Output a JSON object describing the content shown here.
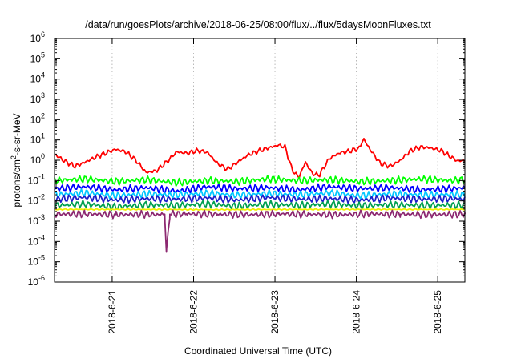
{
  "chart_data": {
    "type": "line",
    "title": "/data/run/goesPlots/archive/2018-06-25/08:00/flux/../flux/5daysMoonFluxes.txt",
    "xlabel": "Coordinated Universal Time (UTC)",
    "ylabel": {
      "before": "protons/cm",
      "sup": "2",
      "after": "-s-sr-MeV"
    },
    "yscale": "log",
    "ylim": [
      1e-06,
      1000000.0
    ],
    "y_ticks": [
      {
        "base": "10",
        "exp": "6"
      },
      {
        "base": "10",
        "exp": "5"
      },
      {
        "base": "10",
        "exp": "4"
      },
      {
        "base": "10",
        "exp": "3"
      },
      {
        "base": "10",
        "exp": "2"
      },
      {
        "base": "10",
        "exp": "1"
      },
      {
        "base": "10",
        "exp": "0"
      },
      {
        "base": "10",
        "exp": "-1"
      },
      {
        "base": "10",
        "exp": "-2"
      },
      {
        "base": "10",
        "exp": "-3"
      },
      {
        "base": "10",
        "exp": "-4"
      },
      {
        "base": "10",
        "exp": "-5"
      },
      {
        "base": "10",
        "exp": "-6"
      }
    ],
    "xlim": [
      "2018-06-20 07:00",
      "2018-06-25 08:00"
    ],
    "x_ticks": [
      "2018-6-21",
      "2018-6-22",
      "2018-6-23",
      "2018-6-24",
      "2018-6-25"
    ],
    "grid": true,
    "series": [
      {
        "color": "#ff0000",
        "x": [
          "2018-06-20 07:00",
          "2018-06-20 10:00",
          "2018-06-20 13:00",
          "2018-06-20 16:00",
          "2018-06-20 19:00",
          "2018-06-20 22:00",
          "2018-06-21 01:00",
          "2018-06-21 04:00",
          "2018-06-21 07:00",
          "2018-06-21 10:00",
          "2018-06-21 13:00",
          "2018-06-21 16:00",
          "2018-06-21 19:00",
          "2018-06-21 22:00",
          "2018-06-22 01:00",
          "2018-06-22 04:00",
          "2018-06-22 07:00",
          "2018-06-22 10:00",
          "2018-06-22 13:00",
          "2018-06-22 16:00",
          "2018-06-22 19:00",
          "2018-06-22 22:00",
          "2018-06-23 01:00",
          "2018-06-23 03:00",
          "2018-06-23 05:00",
          "2018-06-23 07:00",
          "2018-06-23 09:00",
          "2018-06-23 11:00",
          "2018-06-23 13:00",
          "2018-06-23 16:00",
          "2018-06-23 19:00",
          "2018-06-23 22:00",
          "2018-06-24 01:00",
          "2018-06-24 02:00",
          "2018-06-24 04:00",
          "2018-06-24 07:00",
          "2018-06-24 10:00",
          "2018-06-24 13:00",
          "2018-06-24 16:00",
          "2018-06-24 19:00",
          "2018-06-24 22:00",
          "2018-06-25 01:00",
          "2018-06-25 04:00",
          "2018-06-25 06:00",
          "2018-06-25 08:00"
        ],
        "values": [
          2.0,
          0.9,
          0.5,
          0.8,
          1.4,
          2.2,
          3.5,
          2.6,
          1.0,
          0.25,
          0.3,
          0.8,
          2.6,
          2.2,
          3.0,
          2.5,
          0.7,
          0.35,
          0.8,
          1.8,
          2.8,
          4.0,
          5.5,
          4.5,
          0.35,
          0.14,
          0.8,
          0.22,
          0.18,
          1.2,
          2.3,
          2.8,
          4.0,
          12.0,
          3.5,
          0.7,
          0.5,
          1.0,
          3.0,
          4.5,
          4.0,
          3.0,
          1.4,
          0.9,
          1.0
        ]
      },
      {
        "color": "#00ff00",
        "x": [
          "2018-06-20 07:00",
          "2018-06-20 16:00",
          "2018-06-21 01:00",
          "2018-06-21 10:00",
          "2018-06-21 19:00",
          "2018-06-22 04:00",
          "2018-06-22 13:00",
          "2018-06-22 22:00",
          "2018-06-23 07:00",
          "2018-06-23 16:00",
          "2018-06-24 01:00",
          "2018-06-24 10:00",
          "2018-06-24 19:00",
          "2018-06-25 04:00",
          "2018-06-25 08:00"
        ],
        "values": [
          0.1,
          0.12,
          0.09,
          0.11,
          0.08,
          0.1,
          0.09,
          0.12,
          0.1,
          0.11,
          0.09,
          0.1,
          0.12,
          0.1,
          0.11
        ]
      },
      {
        "color": "#0000ff",
        "x": [
          "2018-06-20 07:00",
          "2018-06-20 16:00",
          "2018-06-21 01:00",
          "2018-06-21 10:00",
          "2018-06-21 19:00",
          "2018-06-22 04:00",
          "2018-06-22 13:00",
          "2018-06-22 22:00",
          "2018-06-23 07:00",
          "2018-06-23 16:00",
          "2018-06-24 01:00",
          "2018-06-24 10:00",
          "2018-06-24 19:00",
          "2018-06-25 04:00",
          "2018-06-25 08:00"
        ],
        "values": [
          0.04,
          0.05,
          0.035,
          0.045,
          0.03,
          0.05,
          0.04,
          0.045,
          0.035,
          0.05,
          0.04,
          0.045,
          0.035,
          0.04,
          0.045
        ]
      },
      {
        "color": "#00c8ff",
        "x": [
          "2018-06-20 07:00",
          "2018-06-20 16:00",
          "2018-06-21 01:00",
          "2018-06-21 10:00",
          "2018-06-21 19:00",
          "2018-06-22 04:00",
          "2018-06-22 13:00",
          "2018-06-22 22:00",
          "2018-06-23 07:00",
          "2018-06-23 16:00",
          "2018-06-24 01:00",
          "2018-06-24 10:00",
          "2018-06-24 19:00",
          "2018-06-25 04:00",
          "2018-06-25 08:00"
        ],
        "values": [
          0.02,
          0.025,
          0.018,
          0.022,
          0.02,
          0.024,
          0.019,
          0.023,
          0.02,
          0.025,
          0.018,
          0.022,
          0.02,
          0.021,
          0.02
        ]
      },
      {
        "color": "#1e1ec8",
        "x": [
          "2018-06-20 07:00",
          "2018-06-20 16:00",
          "2018-06-21 01:00",
          "2018-06-21 10:00",
          "2018-06-21 19:00",
          "2018-06-22 04:00",
          "2018-06-22 13:00",
          "2018-06-22 22:00",
          "2018-06-23 07:00",
          "2018-06-23 16:00",
          "2018-06-24 01:00",
          "2018-06-24 10:00",
          "2018-06-24 19:00",
          "2018-06-25 04:00",
          "2018-06-25 08:00"
        ],
        "values": [
          0.012,
          0.015,
          0.011,
          0.013,
          0.012,
          0.014,
          0.011,
          0.015,
          0.012,
          0.013,
          0.011,
          0.014,
          0.012,
          0.013,
          0.012
        ]
      },
      {
        "color": "#00a050",
        "x": [
          "2018-06-20 07:00",
          "2018-06-20 16:00",
          "2018-06-21 01:00",
          "2018-06-21 10:00",
          "2018-06-21 19:00",
          "2018-06-22 04:00",
          "2018-06-22 13:00",
          "2018-06-22 22:00",
          "2018-06-23 07:00",
          "2018-06-23 16:00",
          "2018-06-24 01:00",
          "2018-06-24 10:00",
          "2018-06-24 19:00",
          "2018-06-25 04:00",
          "2018-06-25 08:00"
        ],
        "values": [
          0.006,
          0.007,
          0.005,
          0.0065,
          0.006,
          0.007,
          0.0055,
          0.0068,
          0.006,
          0.007,
          0.0058,
          0.0065,
          0.006,
          0.0062,
          0.006
        ]
      },
      {
        "color": "#f0f000",
        "x": [
          "2018-06-20 07:00",
          "2018-06-21 07:00",
          "2018-06-22 07:00",
          "2018-06-23 07:00",
          "2018-06-24 07:00",
          "2018-06-25 08:00"
        ],
        "values": [
          0.0038,
          0.0038,
          0.0037,
          0.0038,
          0.0038,
          0.0038
        ]
      },
      {
        "color": "#8c2870",
        "x": [
          "2018-06-20 07:00",
          "2018-06-20 16:00",
          "2018-06-21 01:00",
          "2018-06-21 10:00",
          "2018-06-21 14:00",
          "2018-06-21 15:30",
          "2018-06-21 16:00",
          "2018-06-21 17:00",
          "2018-06-21 22:00",
          "2018-06-22 07:00",
          "2018-06-22 16:00",
          "2018-06-23 01:00",
          "2018-06-23 10:00",
          "2018-06-23 19:00",
          "2018-06-24 04:00",
          "2018-06-24 13:00",
          "2018-06-24 22:00",
          "2018-06-25 08:00"
        ],
        "values": [
          0.0022,
          0.0023,
          0.0021,
          0.0022,
          0.0021,
          0.0022,
          3e-05,
          0.0022,
          0.0023,
          0.0022,
          0.0021,
          0.0023,
          0.0022,
          0.0021,
          0.0023,
          0.0022,
          0.0021,
          0.0022
        ]
      }
    ]
  }
}
